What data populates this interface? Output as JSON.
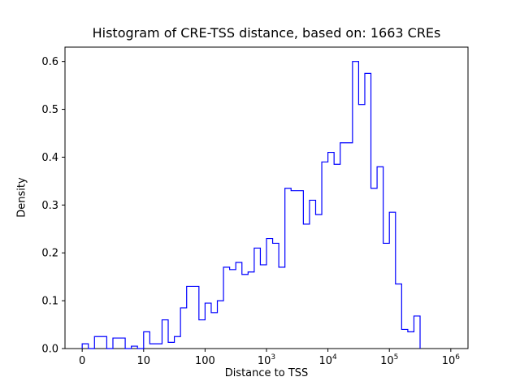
{
  "figure": {
    "title": "Histogram of CRE-TSS distance, based on: 1663 CREs",
    "xlabel": "Distance to TSS",
    "ylabel": "Density"
  },
  "chart_data": {
    "type": "bar",
    "subtype": "step-histogram",
    "title": "Histogram of CRE-TSS distance, based on: 1663 CREs",
    "xlabel": "Distance to TSS",
    "ylabel": "Density",
    "sample_count": 1663,
    "line_color": "#0000ff",
    "x_scale_note": "log10(distance) plotted linearly; decade tick labels",
    "xlim": [
      -0.28,
      6.28
    ],
    "ylim": [
      0,
      0.63
    ],
    "grid": false,
    "legend": "none",
    "bin_start": 0,
    "bin_width": 0.1,
    "values": [
      0.01,
      0,
      0.025,
      0.025,
      0,
      0.022,
      0.022,
      0,
      0.005,
      0,
      0.035,
      0.01,
      0.01,
      0.06,
      0.013,
      0.025,
      0.085,
      0.13,
      0.13,
      0.06,
      0.095,
      0.075,
      0.1,
      0.17,
      0.165,
      0.18,
      0.155,
      0.16,
      0.21,
      0.175,
      0.23,
      0.22,
      0.17,
      0.335,
      0.33,
      0.33,
      0.26,
      0.31,
      0.28,
      0.39,
      0.41,
      0.385,
      0.43,
      0.43,
      0.6,
      0.51,
      0.575,
      0.335,
      0.38,
      0.22,
      0.285,
      0.135,
      0.04,
      0.035,
      0.068
    ],
    "x_ticks": [
      {
        "pos": 0,
        "label": "0"
      },
      {
        "pos": 1,
        "label": "10"
      },
      {
        "pos": 2,
        "label": "100"
      },
      {
        "pos": 3,
        "label": "10^3"
      },
      {
        "pos": 4,
        "label": "10^4"
      },
      {
        "pos": 5,
        "label": "10^5"
      },
      {
        "pos": 6,
        "label": "10^6"
      }
    ],
    "y_ticks": [
      0,
      0.1,
      0.2,
      0.3,
      0.4,
      0.5,
      0.6
    ]
  }
}
